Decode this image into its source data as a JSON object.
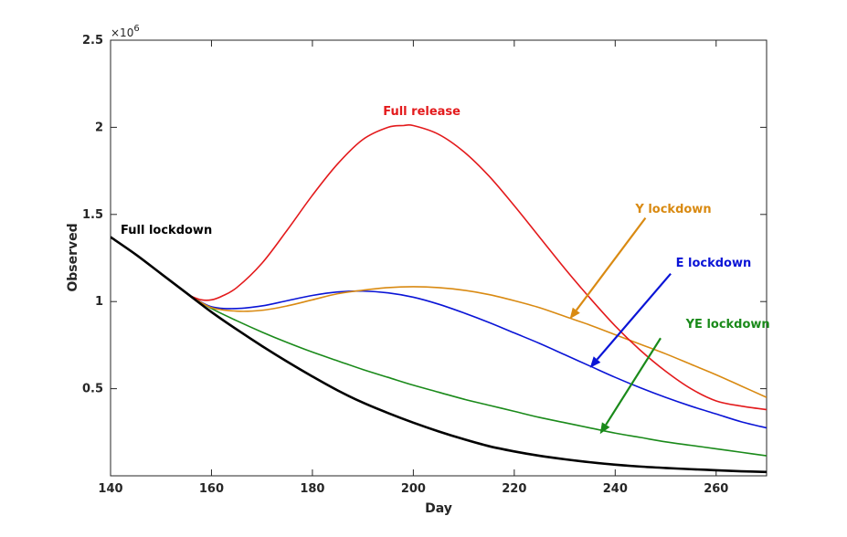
{
  "chart_data": {
    "type": "line",
    "title": "",
    "xlabel": "Day",
    "ylabel": "Observed",
    "y_exponent_label": "×10",
    "y_exponent": "6",
    "xlim": [
      140,
      270
    ],
    "ylim": [
      0,
      2500000
    ],
    "x_ticks": [
      140,
      160,
      180,
      200,
      220,
      240,
      260
    ],
    "x_tick_labels": [
      "140",
      "160",
      "180",
      "200",
      "220",
      "240",
      "260"
    ],
    "y_ticks": [
      500000,
      1000000,
      1500000,
      2000000,
      2500000
    ],
    "y_tick_labels": [
      "0.5",
      "1",
      "1.5",
      "2",
      "2.5"
    ],
    "grid": false,
    "legend": "none",
    "series": [
      {
        "name": "Full lockdown",
        "color": "#000000",
        "x": [
          140,
          145,
          150,
          155,
          160,
          165,
          170,
          175,
          180,
          185,
          190,
          195,
          200,
          205,
          210,
          215,
          220,
          225,
          230,
          235,
          240,
          245,
          250,
          255,
          260,
          265,
          270
        ],
        "y": [
          1370000,
          1270000,
          1160000,
          1050000,
          940000,
          840000,
          745000,
          655000,
          570000,
          490000,
          420000,
          360000,
          305000,
          255000,
          210000,
          170000,
          140000,
          115000,
          95000,
          78000,
          64000,
          53000,
          45000,
          38000,
          32000,
          26000,
          22000
        ]
      },
      {
        "name": "Full release",
        "color": "#e31a1c",
        "x": [
          156,
          158,
          160,
          162,
          165,
          170,
          175,
          180,
          185,
          190,
          195,
          198,
          200,
          205,
          210,
          215,
          220,
          225,
          230,
          235,
          240,
          245,
          250,
          255,
          260,
          265,
          270
        ],
        "y": [
          1030000,
          1010000,
          1010000,
          1030000,
          1080000,
          1220000,
          1410000,
          1610000,
          1790000,
          1930000,
          2000000,
          2010000,
          2010000,
          1960000,
          1860000,
          1720000,
          1550000,
          1370000,
          1190000,
          1020000,
          860000,
          720000,
          600000,
          500000,
          430000,
          400000,
          380000
        ]
      },
      {
        "name": "Y lockdown",
        "color": "#d98a12",
        "x": [
          156,
          160,
          165,
          170,
          175,
          180,
          185,
          190,
          195,
          200,
          205,
          210,
          215,
          220,
          225,
          230,
          235,
          240,
          245,
          250,
          255,
          260,
          265,
          270
        ],
        "y": [
          1030000,
          965000,
          945000,
          950000,
          975000,
          1010000,
          1045000,
          1065000,
          1080000,
          1085000,
          1080000,
          1065000,
          1040000,
          1005000,
          965000,
          915000,
          865000,
          810000,
          755000,
          700000,
          640000,
          580000,
          515000,
          450000
        ]
      },
      {
        "name": "E lockdown",
        "color": "#0a14d6",
        "x": [
          156,
          160,
          165,
          170,
          175,
          180,
          185,
          190,
          195,
          200,
          205,
          210,
          215,
          220,
          225,
          230,
          235,
          240,
          245,
          250,
          255,
          260,
          265,
          270
        ],
        "y": [
          1030000,
          970000,
          960000,
          975000,
          1005000,
          1035000,
          1055000,
          1060000,
          1050000,
          1025000,
          985000,
          935000,
          880000,
          820000,
          760000,
          695000,
          630000,
          565000,
          505000,
          450000,
          400000,
          355000,
          310000,
          275000
        ]
      },
      {
        "name": "YE lockdown",
        "color": "#1a8a1a",
        "x": [
          156,
          160,
          165,
          170,
          175,
          180,
          185,
          190,
          195,
          200,
          205,
          210,
          215,
          220,
          225,
          230,
          235,
          240,
          245,
          250,
          255,
          260,
          265,
          270
        ],
        "y": [
          1030000,
          960000,
          890000,
          825000,
          765000,
          710000,
          660000,
          610000,
          565000,
          520000,
          480000,
          440000,
          405000,
          370000,
          335000,
          305000,
          275000,
          245000,
          220000,
          195000,
          175000,
          155000,
          135000,
          115000
        ]
      }
    ],
    "annotations": [
      {
        "text": "Full release",
        "color": "#e31a1c",
        "tx": 194,
        "ty": 2070000
      },
      {
        "text": "Y lockdown",
        "color": "#d98a12",
        "tx": 244,
        "ty": 1510000,
        "arrow_from": [
          246,
          1480000
        ],
        "arrow_to": [
          231,
          900000
        ]
      },
      {
        "text": "E lockdown",
        "color": "#0a14d6",
        "tx": 252,
        "ty": 1200000,
        "arrow_from": [
          251,
          1160000
        ],
        "arrow_to": [
          235,
          620000
        ]
      },
      {
        "text": "YE lockdown",
        "color": "#1a8a1a",
        "tx": 254,
        "ty": 850000,
        "arrow_from": [
          249,
          790000
        ],
        "arrow_to": [
          237,
          240000
        ]
      },
      {
        "text": "Full lockdown",
        "color": "#000000",
        "tx": 142,
        "ty": 1390000
      }
    ]
  }
}
